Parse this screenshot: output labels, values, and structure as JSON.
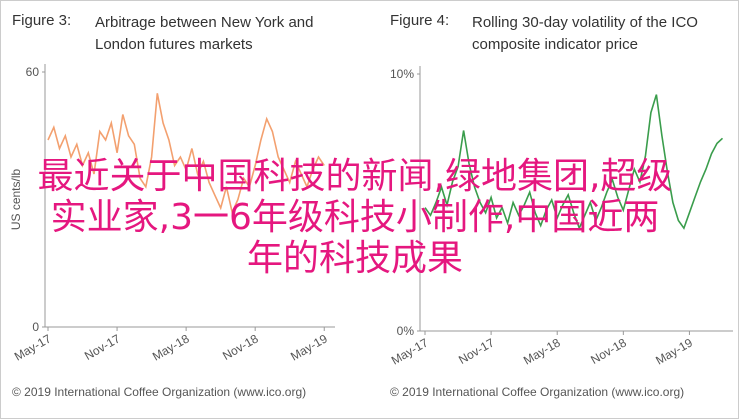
{
  "chart_data": [
    {
      "type": "line",
      "label": "Figure 3:",
      "title": "Arbitrage between New York and London futures markets",
      "ylabel": "US cents/lb",
      "source": "© 2019 International Coffee Organization (www.ico.org)",
      "x": [
        0,
        0.5,
        1,
        1.5,
        2,
        2.5,
        3,
        3.5,
        4,
        4.5,
        5,
        5.5,
        6,
        6.5,
        7,
        7.5,
        8,
        8.5,
        9,
        9.5,
        10,
        10.5,
        11,
        11.5,
        12,
        12.5,
        13,
        13.5,
        14,
        14.5,
        15,
        15.5,
        16,
        16.5,
        17,
        17.5,
        18,
        18.5,
        19,
        19.5,
        20,
        20.5,
        21,
        21.5,
        22,
        22.5,
        23,
        23.5,
        24
      ],
      "series": [
        {
          "color": "#f3a06f",
          "values": [
            44,
            47,
            42,
            45,
            40,
            43,
            38,
            41,
            36,
            46,
            44,
            48,
            41,
            50,
            45,
            43,
            35,
            33,
            40,
            55,
            48,
            44,
            38,
            40,
            37,
            42,
            36,
            39,
            34,
            31,
            28,
            33,
            27,
            30,
            35,
            33,
            38,
            44,
            49,
            46,
            40,
            37,
            34,
            39,
            36,
            33,
            37,
            40,
            38
          ]
        }
      ],
      "xlim": [
        0,
        24.5
      ],
      "ylim": [
        0,
        60
      ],
      "xticks": [
        {
          "value": 0,
          "label": "May-17"
        },
        {
          "value": 6,
          "label": "Nov-17"
        },
        {
          "value": 12,
          "label": "May-18"
        },
        {
          "value": 18,
          "label": "Nov-18"
        },
        {
          "value": 24,
          "label": "May-19"
        }
      ],
      "yticks": [
        0,
        60
      ]
    },
    {
      "type": "line",
      "label": "Figure 4:",
      "title": "Rolling 30-day volatility of the ICO composite indicator price",
      "source": "© 2019 International Coffee Organization (www.ico.org)",
      "x": [
        0,
        0.5,
        1,
        1.5,
        2,
        2.5,
        3,
        3.5,
        4,
        4.5,
        5,
        5.5,
        6,
        6.5,
        7,
        7.5,
        8,
        8.5,
        9,
        9.5,
        10,
        10.5,
        11,
        11.5,
        12,
        12.5,
        13,
        13.5,
        14,
        14.5,
        15,
        15.5,
        16,
        16.5,
        17,
        17.5,
        18,
        18.5,
        19,
        19.5,
        20,
        20.5,
        21,
        21.5,
        22,
        22.5,
        23,
        23.5,
        24,
        24.5,
        25,
        25.5,
        26,
        26.5,
        27
      ],
      "series": [
        {
          "color": "#3a9d4c",
          "values": [
            4.8,
            4.5,
            5.0,
            5.6,
            4.9,
            5.8,
            6.4,
            7.8,
            6.5,
            5.6,
            5.0,
            4.6,
            5.2,
            4.4,
            4.8,
            4.2,
            5.0,
            4.5,
            4.9,
            5.4,
            4.6,
            4.1,
            4.7,
            5.1,
            4.4,
            4.9,
            5.3,
            4.6,
            4.0,
            4.5,
            5.0,
            4.3,
            4.8,
            5.4,
            5.9,
            5.2,
            4.7,
            5.5,
            6.3,
            5.8,
            6.8,
            8.5,
            9.2,
            7.6,
            6.2,
            5.0,
            4.3,
            4.0,
            4.6,
            5.2,
            5.8,
            6.3,
            6.9,
            7.3,
            7.5
          ]
        }
      ],
      "xlim": [
        0,
        27.5
      ],
      "ylim": [
        0,
        10
      ],
      "xticks": [
        {
          "value": 0,
          "label": "May-17"
        },
        {
          "value": 6,
          "label": "Nov-17"
        },
        {
          "value": 12,
          "label": "May-18"
        },
        {
          "value": 18,
          "label": "Nov-18"
        },
        {
          "value": 24,
          "label": "May-19"
        }
      ],
      "yticks": [
        {
          "value": 0,
          "label": "0%"
        },
        {
          "value": 10,
          "label": "10%"
        }
      ]
    }
  ],
  "overlay_text": [
    "最近关于中国科技的新闻,绿地集团,超级",
    "实业家,3一6年级科技小制作,中国近两",
    "年的科技成果"
  ]
}
